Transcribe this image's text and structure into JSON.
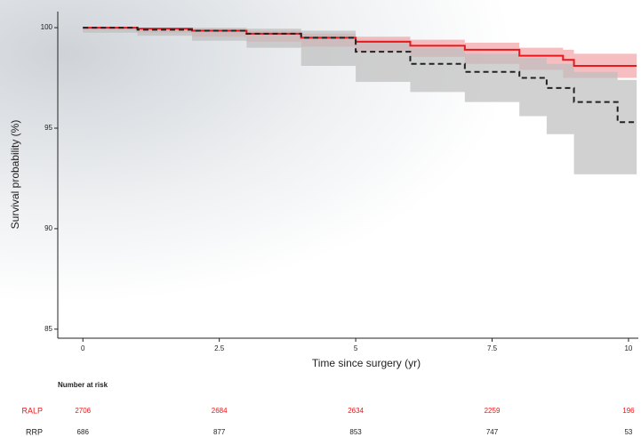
{
  "chart_data": {
    "type": "line",
    "x_label": "Time since surgery (yr)",
    "y_label": "Survival probability (%)",
    "xlim": [
      -0.46,
      10.18
    ],
    "ylim": [
      84.55,
      100.8
    ],
    "xticks": [
      0,
      2.5,
      5,
      7.5,
      10
    ],
    "yticks": [
      85,
      90,
      95,
      100
    ],
    "step": true,
    "series": [
      {
        "name": "RALP",
        "color": "#e8191c",
        "band_color": "#f4a3a6",
        "dash": false,
        "x": [
          0,
          1,
          2,
          3,
          4,
          5,
          6,
          7,
          8,
          8.8,
          9,
          10.15
        ],
        "values": [
          100,
          99.95,
          99.85,
          99.7,
          99.5,
          99.3,
          99.1,
          98.9,
          98.6,
          98.4,
          98.1,
          98.1
        ],
        "lower": [
          100,
          99.9,
          99.75,
          99.55,
          99.3,
          99.05,
          98.8,
          98.55,
          98.2,
          97.9,
          97.5,
          97.5
        ],
        "upper": [
          100,
          100,
          99.95,
          99.85,
          99.7,
          99.55,
          99.4,
          99.25,
          99.0,
          98.9,
          98.7,
          98.7
        ]
      },
      {
        "name": "RRP",
        "color": "#222222",
        "band_color": "#bdbdbd",
        "dash": true,
        "x": [
          0,
          1,
          2,
          3,
          4,
          5,
          6,
          7,
          8,
          8.5,
          9,
          9.8,
          10.15
        ],
        "values": [
          100,
          99.9,
          99.85,
          99.7,
          99.5,
          98.8,
          98.2,
          97.8,
          97.5,
          97.0,
          96.3,
          95.3,
          95.3
        ],
        "lower": [
          100,
          99.75,
          99.6,
          99.35,
          99.0,
          98.1,
          97.3,
          96.8,
          96.3,
          95.6,
          94.7,
          92.7,
          92.7
        ],
        "upper": [
          100,
          100,
          100,
          99.95,
          99.85,
          99.4,
          99.0,
          98.7,
          98.5,
          98.2,
          97.8,
          97.4,
          97.4
        ]
      }
    ],
    "risk_table": {
      "title": "Number at risk",
      "rows": [
        {
          "name": "RALP",
          "color": "#e8191c",
          "values": [
            2706,
            2684,
            2634,
            2259,
            196
          ]
        },
        {
          "name": "RRP",
          "color": "#222222",
          "values": [
            686,
            877,
            853,
            747,
            53
          ]
        }
      ]
    }
  }
}
